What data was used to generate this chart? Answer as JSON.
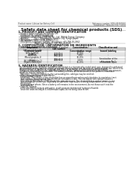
{
  "header_left": "Product name: Lithium Ion Battery Cell",
  "header_right_line1": "Reference number: SDS-LIB-050510",
  "header_right_line2": "Established / Revision: Dec.7.2010",
  "main_title": "Safety data sheet for chemical products (SDS)",
  "section1_title": "1. PRODUCT AND COMPANY IDENTIFICATION",
  "section2_title": "2. COMPOSITION / INFORMATION ON INGREDIENTS",
  "section3_title": "3. HAZARDS IDENTIFICATION",
  "bg_color": "#ffffff",
  "text_color": "#111111",
  "line_color": "#888888"
}
